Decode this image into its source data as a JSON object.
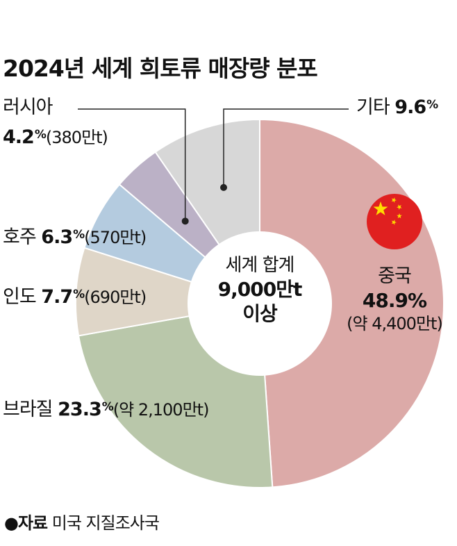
{
  "title": "2024년 세계 희토류 매장량 분포",
  "center": {
    "line1": "세계 합계",
    "line2": "9,000만t",
    "line3": "이상"
  },
  "source": {
    "label": "●자료",
    "text": "미국 지질조사국"
  },
  "chart_data": {
    "type": "pie",
    "variant": "donut",
    "start": "12 o'clock, clockwise",
    "slices": [
      {
        "name": "중국",
        "value": 48.9,
        "value_label": "48.9",
        "unit": "%",
        "amount": "(약 4,400만t)",
        "color": "#dcaaa8"
      },
      {
        "name": "브라질",
        "value": 23.3,
        "value_label": "23.3",
        "unit": "%",
        "amount": "(약 2,100만t)",
        "color": "#b9c7aa"
      },
      {
        "name": "인도",
        "value": 7.7,
        "value_label": "7.7",
        "unit": "%",
        "amount": "(690만t)",
        "color": "#dfd6c8"
      },
      {
        "name": "호주",
        "value": 6.3,
        "value_label": "6.3",
        "unit": "%",
        "amount": "(570만t)",
        "color": "#b4cbdf"
      },
      {
        "name": "러시아",
        "value": 4.2,
        "value_label": "4.2",
        "unit": "%",
        "amount": "(380만t)",
        "color": "#bbb1c6"
      },
      {
        "name": "기타",
        "value": 9.6,
        "value_label": "9.6",
        "unit": "%",
        "amount": "",
        "color": "#d7d7d7"
      }
    ]
  },
  "flag": {
    "icon": "china-flag-icon",
    "red": "#e02020",
    "star": "#ffde00"
  }
}
